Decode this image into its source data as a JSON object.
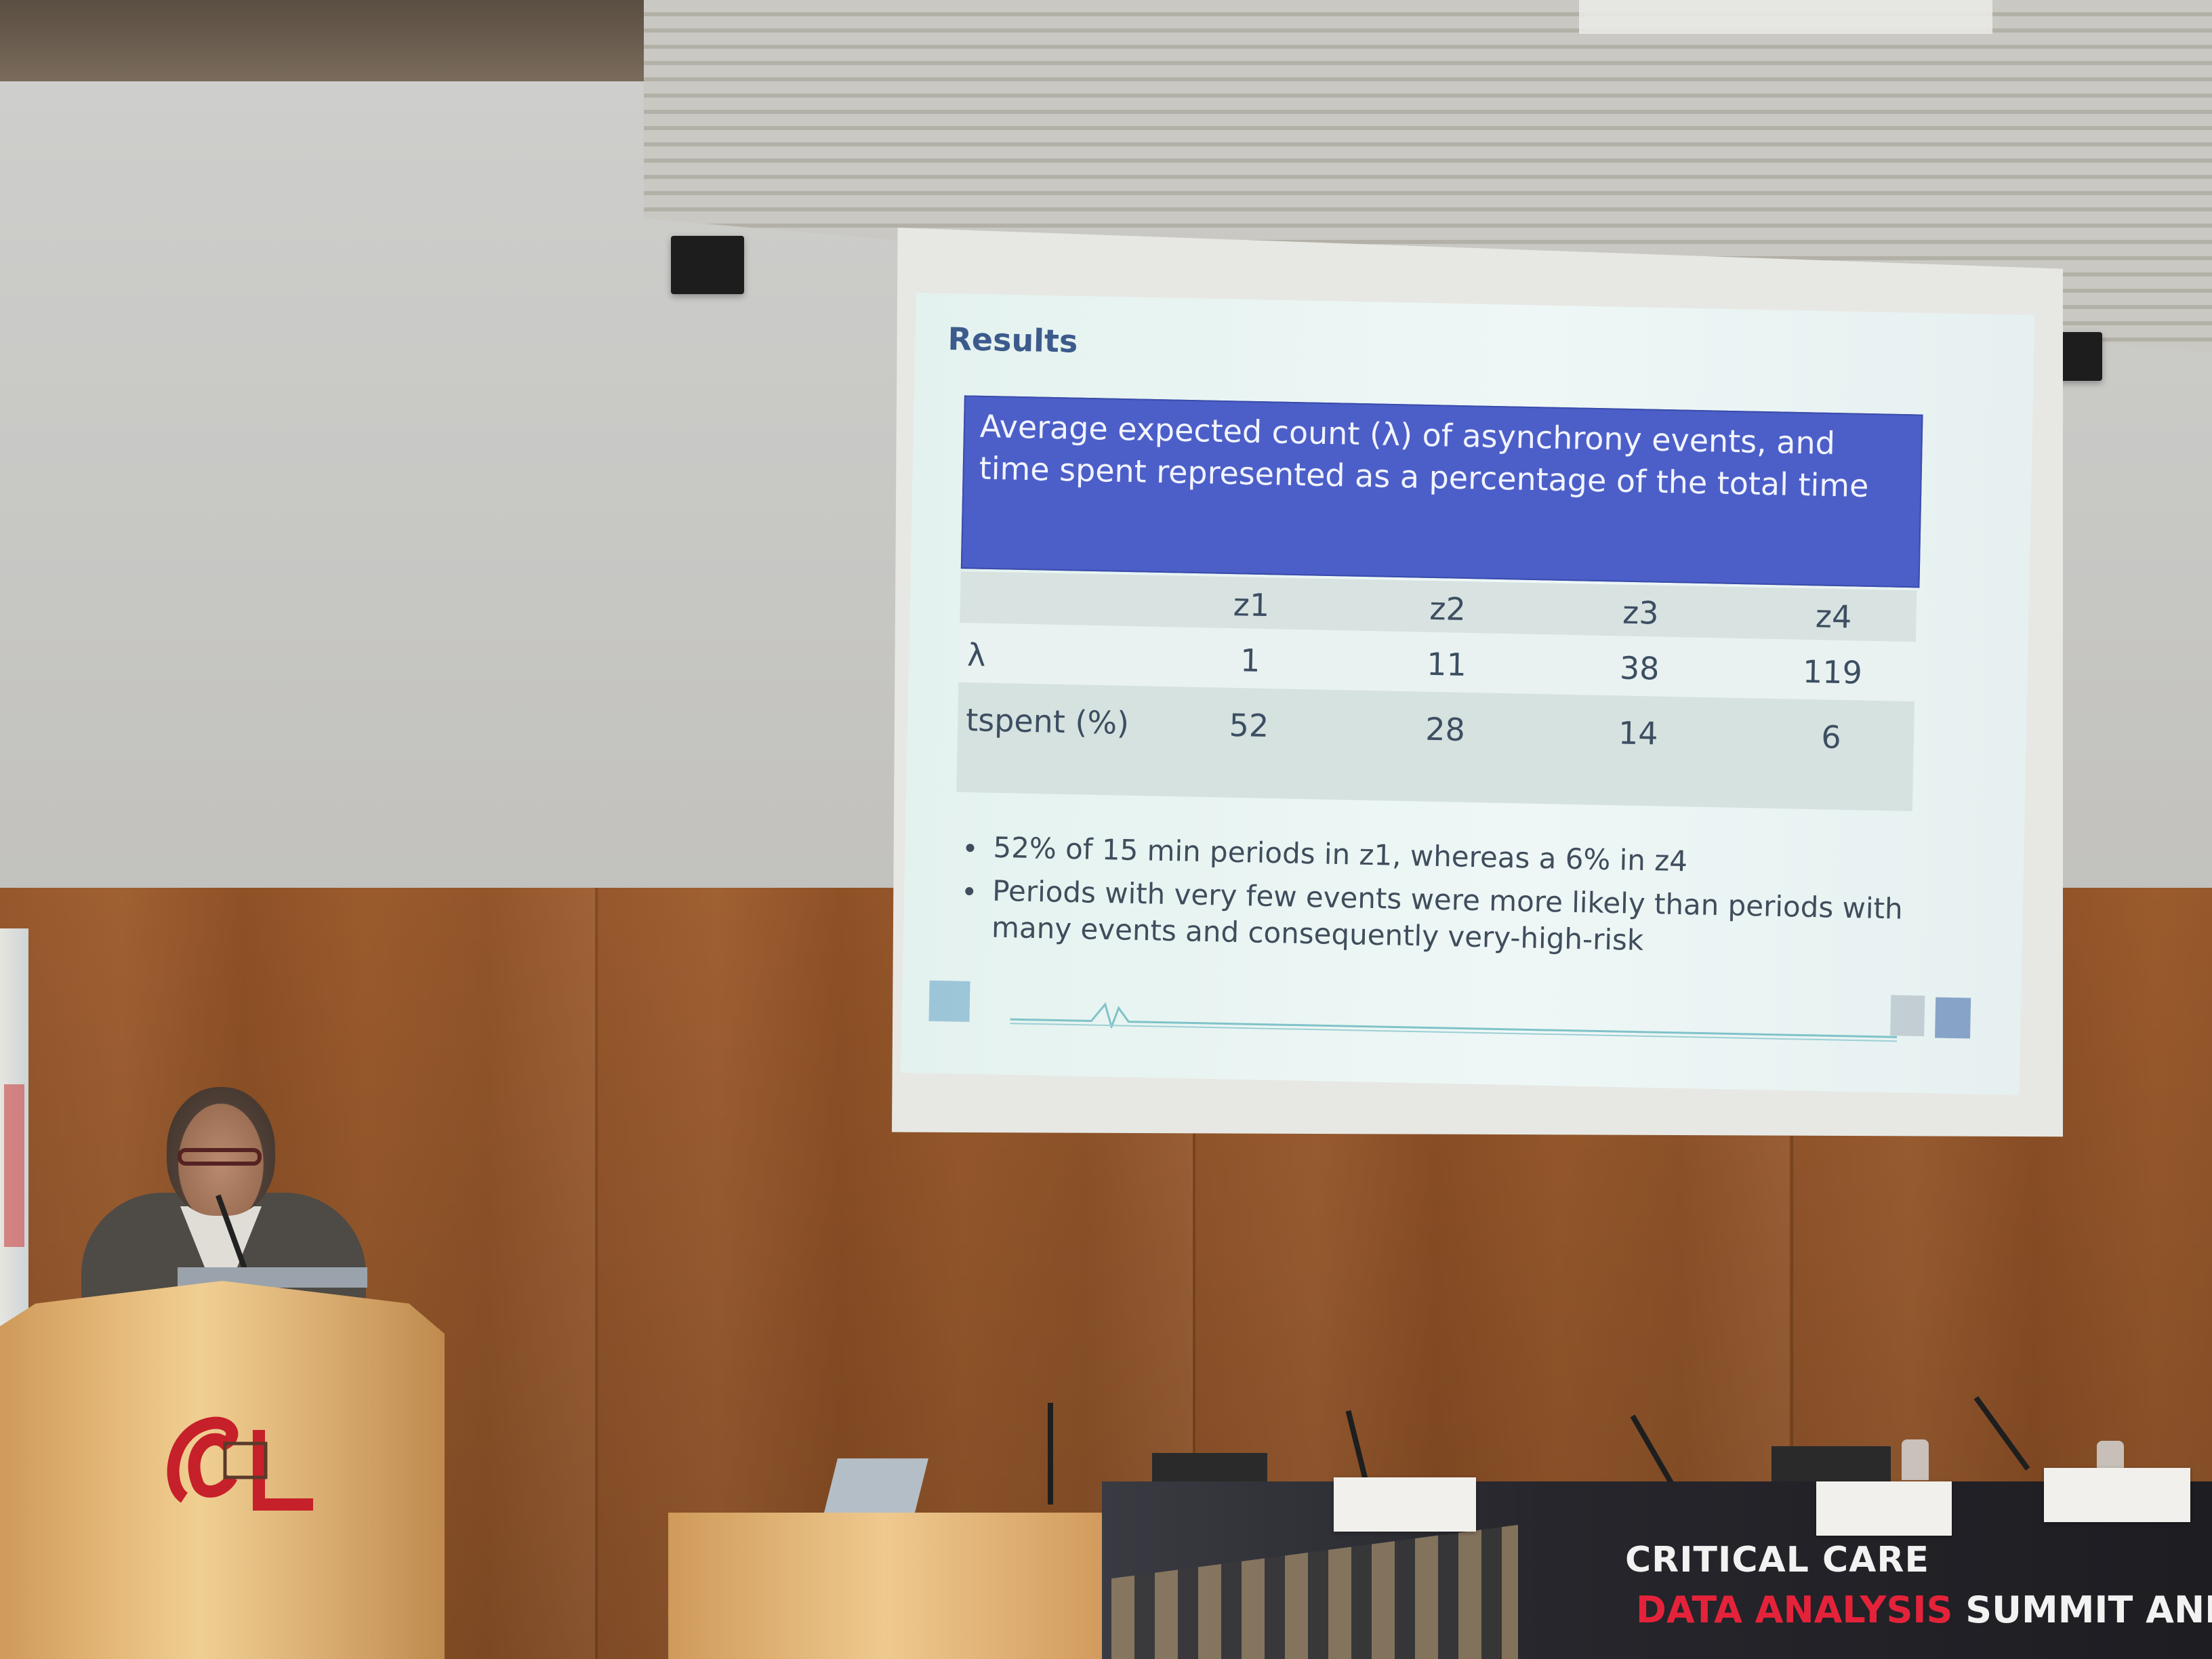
{
  "slide": {
    "title": "Results",
    "header": "Average expected count (λ) of asynchrony events, and time spent represented as a percentage of the total time",
    "table": {
      "columns": [
        "",
        "z1",
        "z2",
        "z3",
        "z4"
      ],
      "rows": [
        {
          "label": "λ",
          "values": [
            "1",
            "11",
            "38",
            "119"
          ]
        },
        {
          "label": "tspent (%)",
          "values": [
            "52",
            "28",
            "14",
            "6"
          ]
        }
      ]
    },
    "bullets": [
      "52% of 15 min periods in z1, whereas a 6% in z4",
      "Periods with very few events were more likely than periods with many events and consequently very-high-risk"
    ]
  },
  "banner": {
    "line1": "CRITICAL CARE",
    "line2_red": "DATA ANALYSIS",
    "line2_white": " SUMMIT AND"
  },
  "colors": {
    "slide_header_bg": "#4c5fc8",
    "slide_title": "#3c5b8c",
    "banner_red": "#e4233a"
  }
}
